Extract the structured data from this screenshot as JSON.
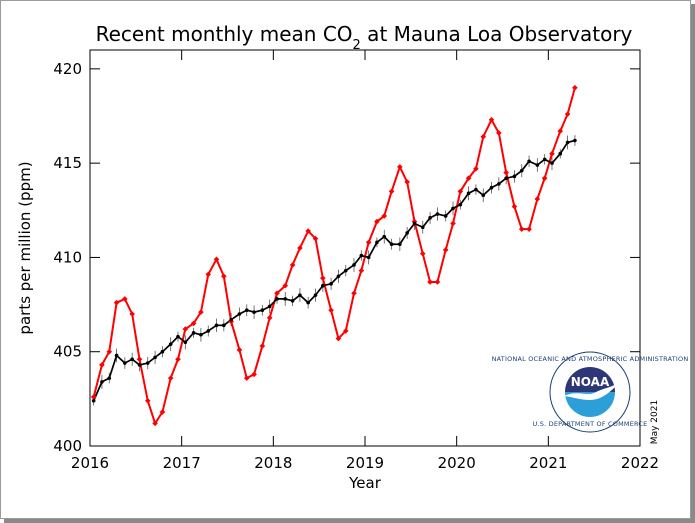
{
  "chart_data": {
    "type": "line",
    "title": "Recent monthly mean CO",
    "title_subscript": "2",
    "title_suffix": " at Mauna Loa Observatory",
    "xlabel": "Year",
    "ylabel": "parts per million (ppm)",
    "xlim": [
      2016,
      2022
    ],
    "ylim": [
      400,
      421
    ],
    "xticks": [
      "2016",
      "2017",
      "2018",
      "2019",
      "2020",
      "2021",
      "2022"
    ],
    "yticks": [
      "400",
      "405",
      "410",
      "415",
      "420"
    ],
    "date_label": "May 2021",
    "logo_text": "NOAA",
    "logo_circle_text": "NATIONAL OCEANIC AND ATMOSPHERIC ADMINISTRATION",
    "logo_bottom_text": "U.S. DEPARTMENT OF COMMERCE",
    "observed_color": "#ff0000",
    "trend_color": "#000000",
    "x": [
      2016.04,
      2016.13,
      2016.21,
      2016.29,
      2016.38,
      2016.46,
      2016.54,
      2016.63,
      2016.71,
      2016.79,
      2016.88,
      2016.96,
      2017.04,
      2017.13,
      2017.21,
      2017.29,
      2017.38,
      2017.46,
      2017.54,
      2017.63,
      2017.71,
      2017.79,
      2017.88,
      2017.96,
      2018.04,
      2018.13,
      2018.21,
      2018.29,
      2018.38,
      2018.46,
      2018.54,
      2018.63,
      2018.71,
      2018.79,
      2018.88,
      2018.96,
      2019.04,
      2019.13,
      2019.21,
      2019.29,
      2019.38,
      2019.46,
      2019.54,
      2019.63,
      2019.71,
      2019.79,
      2019.88,
      2019.96,
      2020.04,
      2020.13,
      2020.21,
      2020.29,
      2020.38,
      2020.46,
      2020.54,
      2020.63,
      2020.71,
      2020.79,
      2020.88,
      2020.96,
      2021.04,
      2021.13,
      2021.21,
      2021.29
    ],
    "series": [
      {
        "values": [
          402.6,
          404.3,
          405.0,
          407.6,
          407.8,
          407.0,
          404.6,
          402.4,
          401.2,
          401.8,
          403.6,
          404.6,
          406.2,
          406.5,
          407.1,
          409.1,
          409.9,
          409.0,
          406.6,
          405.1,
          403.6,
          403.8,
          405.3,
          406.8,
          408.1,
          408.5,
          409.6,
          410.5,
          411.4,
          411.0,
          408.9,
          407.2,
          405.7,
          406.1,
          408.1,
          409.3,
          410.8,
          411.9,
          412.2,
          413.5,
          414.8,
          414.0,
          411.9,
          410.2,
          408.7,
          408.7,
          410.4,
          411.8,
          413.5,
          414.2,
          414.7,
          416.4,
          417.3,
          416.6,
          414.5,
          412.7,
          411.5,
          411.5,
          413.1,
          414.2,
          415.5,
          416.7,
          417.6,
          419.0
        ]
      },
      {
        "values": [
          402.4,
          403.4,
          403.6,
          404.8,
          404.4,
          404.6,
          404.3,
          404.4,
          404.7,
          405.0,
          405.4,
          405.8,
          405.5,
          406.0,
          405.9,
          406.1,
          406.4,
          406.4,
          406.7,
          407.0,
          407.2,
          407.1,
          407.2,
          407.4,
          407.8,
          407.8,
          407.7,
          408.0,
          407.6,
          408.0,
          408.5,
          408.6,
          409.0,
          409.3,
          409.6,
          410.1,
          410.0,
          410.8,
          411.1,
          410.7,
          410.7,
          411.3,
          411.8,
          411.6,
          412.1,
          412.3,
          412.2,
          412.6,
          412.8,
          413.4,
          413.6,
          413.3,
          413.7,
          413.9,
          414.2,
          414.3,
          414.6,
          415.1,
          414.9,
          415.2,
          415.0,
          415.5,
          416.1,
          416.2
        ]
      }
    ]
  }
}
